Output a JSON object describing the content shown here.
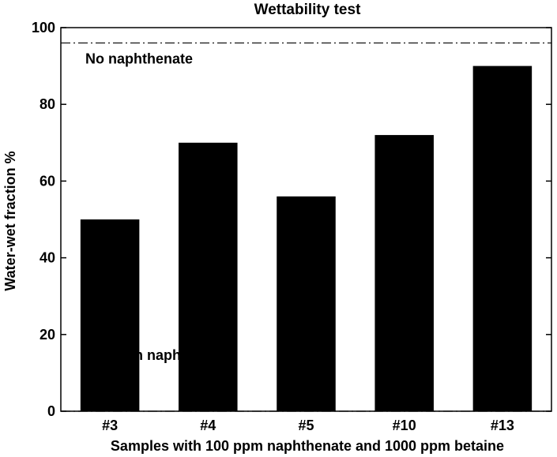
{
  "chart_data": {
    "type": "bar",
    "title": "Wettability test",
    "xlabel": "Samples with 100 ppm naphthenate and 1000 ppm betaine",
    "ylabel": "Water-wet fraction %",
    "categories": [
      "#3",
      "#4",
      "#5",
      "#10",
      "#13"
    ],
    "values": [
      50,
      70,
      56,
      72,
      90
    ],
    "ylim": [
      0,
      100
    ],
    "yticks": [
      0,
      20,
      40,
      60,
      80,
      100
    ],
    "grid": false,
    "bar_color": "#000000",
    "reference_lines": [
      {
        "label": "No naphthenate",
        "value": 96,
        "style": "dash-dot"
      },
      {
        "label": "100 ppm naphthenate",
        "value": 0,
        "style": "dash-dot"
      }
    ]
  }
}
